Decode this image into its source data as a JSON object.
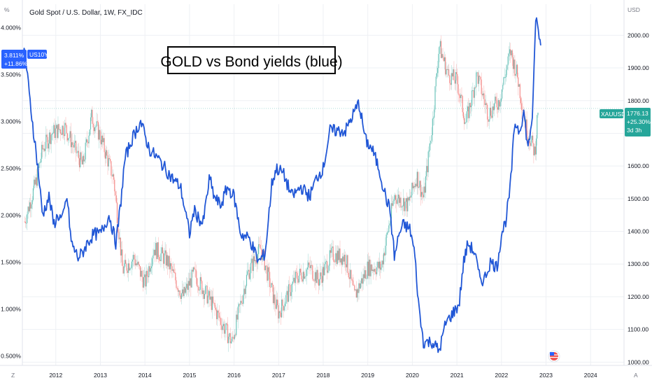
{
  "header": {
    "symbol_title": "Gold Spot / U.S. Dollar, 1W, FX_IDC",
    "left_unit": "%",
    "right_unit": "USD",
    "annotation": "GOLD vs Bond yields (blue)"
  },
  "corner": {
    "left": "Z",
    "right": "A"
  },
  "colors": {
    "yield_line": "#2157d6",
    "candle_up": "#26a69a",
    "candle_down": "#ef5350",
    "gold_badge": "#26a69a",
    "yield_badge": "#2962ff",
    "grid": "#eef0f4",
    "axis_border": "#e0e3eb",
    "text": "#131722"
  },
  "badges": {
    "yield": {
      "value": "3.811%",
      "change": "+11.86%",
      "ticker": "US10Y"
    },
    "gold": {
      "ticker": "XAUUSD",
      "value": "1776.13",
      "change": "+25.30%",
      "countdown": "3d 3h"
    }
  },
  "chart_data": {
    "type": "line",
    "title": "Gold Spot / U.S. Dollar, 1W, FX_IDC",
    "xlim": [
      2011.25,
      2024.75
    ],
    "left_axis": {
      "label": "%",
      "ylim": [
        0.4,
        4.25
      ],
      "ticks": [
        0.5,
        1.0,
        1.5,
        2.0,
        2.5,
        3.0,
        3.5,
        4.0
      ],
      "tick_labels": [
        "0.500%",
        "1.000%",
        "1.500%",
        "2.000%",
        "2.500%",
        "3.000%",
        "3.500%",
        "4.000%"
      ]
    },
    "right_axis": {
      "label": "USD",
      "ylim": [
        990,
        2095
      ],
      "ticks": [
        1000,
        1100,
        1200,
        1300,
        1400,
        1500,
        1600,
        1700,
        1800,
        1900,
        2000
      ],
      "tick_labels": [
        "1000.00",
        "1100.00",
        "1200.00",
        "1300.00",
        "1400.00",
        "1500.00",
        "1600.00",
        "1700.00",
        "1800.00",
        "1900.00",
        "2000.00"
      ]
    },
    "x_ticks": [
      2012,
      2013,
      2014,
      2015,
      2016,
      2017,
      2018,
      2019,
      2020,
      2021,
      2022,
      2023,
      2024
    ],
    "x_tick_labels": [
      "2012",
      "2013",
      "2014",
      "2015",
      "2016",
      "2017",
      "2018",
      "2019",
      "2020",
      "2021",
      "2022",
      "2023",
      "2024"
    ],
    "grid": true,
    "legend": "none",
    "series": [
      {
        "axis": "right",
        "style": "candlestick",
        "x": [
          2011.3,
          2011.55,
          2011.7,
          2011.9,
          2012.2,
          2012.6,
          2012.8,
          2013.0,
          2013.3,
          2013.5,
          2013.75,
          2014.0,
          2014.2,
          2014.5,
          2014.85,
          2015.1,
          2015.5,
          2015.95,
          2016.3,
          2016.6,
          2016.9,
          2017.0,
          2017.4,
          2017.7,
          2017.9,
          2018.2,
          2018.5,
          2018.7,
          2019.0,
          2019.3,
          2019.6,
          2019.9,
          2020.1,
          2020.25,
          2020.45,
          2020.6,
          2020.8,
          2021.0,
          2021.2,
          2021.45,
          2021.7,
          2021.95,
          2022.2,
          2022.35,
          2022.55,
          2022.75,
          2022.82
        ],
        "values": [
          1430,
          1550,
          1650,
          1700,
          1720,
          1600,
          1750,
          1690,
          1560,
          1280,
          1320,
          1240,
          1350,
          1310,
          1200,
          1270,
          1180,
          1060,
          1270,
          1350,
          1190,
          1150,
          1260,
          1290,
          1250,
          1330,
          1320,
          1200,
          1290,
          1290,
          1510,
          1480,
          1570,
          1500,
          1730,
          1970,
          1880,
          1860,
          1730,
          1880,
          1760,
          1800,
          1950,
          1880,
          1720,
          1640,
          1776.13
        ]
      },
      {
        "axis": "left",
        "style": "line",
        "x": [
          2011.25,
          2011.3,
          2011.4,
          2011.5,
          2011.6,
          2011.7,
          2011.85,
          2011.95,
          2012.05,
          2012.15,
          2012.25,
          2012.35,
          2012.5,
          2012.6,
          2012.7,
          2012.85,
          2013.0,
          2013.2,
          2013.35,
          2013.45,
          2013.55,
          2013.7,
          2013.9,
          2014.1,
          2014.3,
          2014.45,
          2014.6,
          2014.8,
          2015.0,
          2015.1,
          2015.3,
          2015.45,
          2015.55,
          2015.7,
          2015.85,
          2016.0,
          2016.15,
          2016.35,
          2016.55,
          2016.7,
          2016.85,
          2016.95,
          2017.1,
          2017.3,
          2017.5,
          2017.7,
          2017.85,
          2018.0,
          2018.15,
          2018.3,
          2018.5,
          2018.7,
          2018.8,
          2018.95,
          2019.1,
          2019.25,
          2019.4,
          2019.5,
          2019.6,
          2019.7,
          2019.8,
          2019.95,
          2020.05,
          2020.15,
          2020.25,
          2020.45,
          2020.6,
          2020.75,
          2020.9,
          2021.05,
          2021.15,
          2021.25,
          2021.4,
          2021.5,
          2021.6,
          2021.75,
          2021.9,
          2022.0,
          2022.1,
          2022.2,
          2022.3,
          2022.4,
          2022.5,
          2022.6,
          2022.7,
          2022.78,
          2022.82,
          2022.88
        ],
        "values": [
          3.6,
          3.8,
          3.3,
          2.9,
          2.5,
          2.0,
          2.2,
          1.9,
          2.0,
          1.95,
          2.2,
          1.7,
          1.55,
          1.6,
          1.7,
          1.8,
          1.8,
          2.0,
          1.7,
          2.1,
          2.6,
          2.8,
          3.0,
          2.7,
          2.6,
          2.5,
          2.4,
          2.3,
          1.8,
          2.05,
          1.9,
          2.4,
          2.2,
          2.1,
          2.3,
          2.2,
          1.8,
          1.75,
          1.5,
          1.6,
          2.35,
          2.5,
          2.45,
          2.2,
          2.3,
          2.2,
          2.4,
          2.5,
          2.9,
          2.9,
          2.9,
          3.1,
          3.2,
          2.8,
          2.7,
          2.5,
          2.2,
          2.05,
          1.55,
          1.8,
          1.9,
          1.85,
          1.6,
          1.0,
          0.65,
          0.65,
          0.55,
          0.85,
          0.95,
          1.05,
          1.5,
          1.7,
          1.6,
          1.35,
          1.3,
          1.5,
          1.45,
          1.8,
          1.95,
          2.3,
          3.0,
          2.9,
          3.1,
          2.7,
          3.1,
          4.2,
          3.95,
          3.811
        ]
      }
    ]
  }
}
